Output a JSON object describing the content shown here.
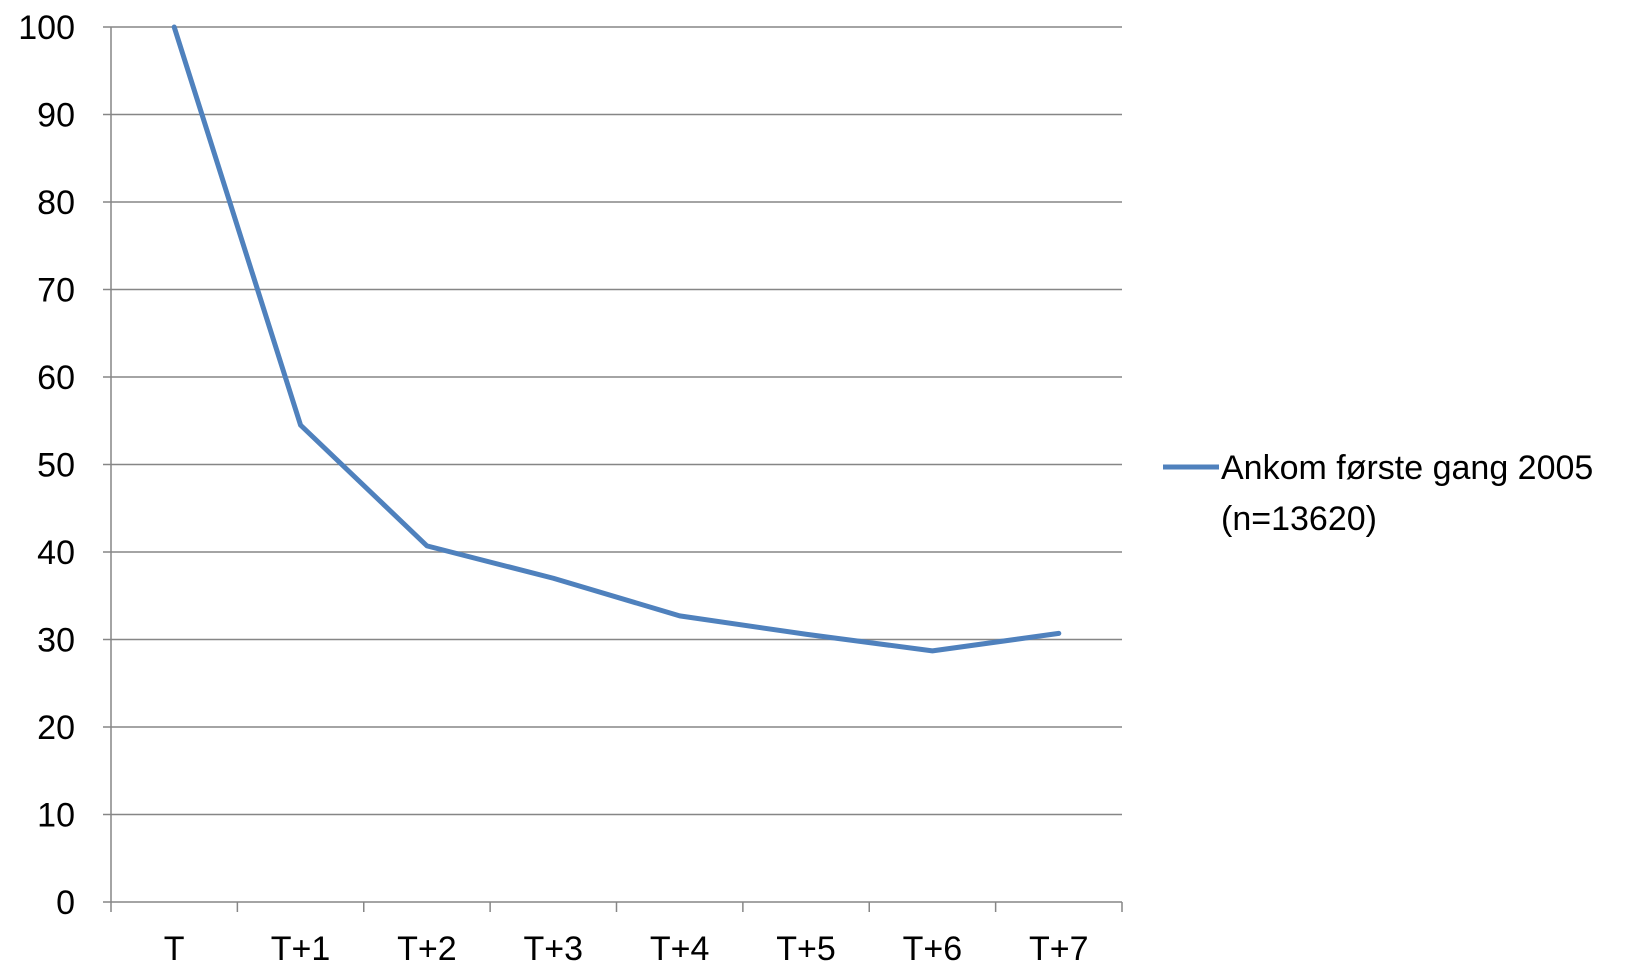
{
  "chart_data": {
    "type": "line",
    "title": "",
    "xlabel": "",
    "ylabel": "",
    "categories": [
      "T",
      "T+1",
      "T+2",
      "T+3",
      "T+4",
      "T+5",
      "T+6",
      "T+7"
    ],
    "y_ticks": [
      "0",
      "10",
      "20",
      "30",
      "40",
      "50",
      "60",
      "70",
      "80",
      "90",
      "100"
    ],
    "ylim": [
      0,
      100
    ],
    "grid": true,
    "legend_position": "right",
    "series": [
      {
        "name": "Ankom første gang 2005 (n=13620)",
        "name_lines": [
          "Ankom første gang 2005",
          "(n=13620)"
        ],
        "values": [
          100,
          54.5,
          40.7,
          37,
          32.7,
          30.6,
          28.7,
          30.7
        ],
        "color": "#4f81bd"
      }
    ]
  }
}
